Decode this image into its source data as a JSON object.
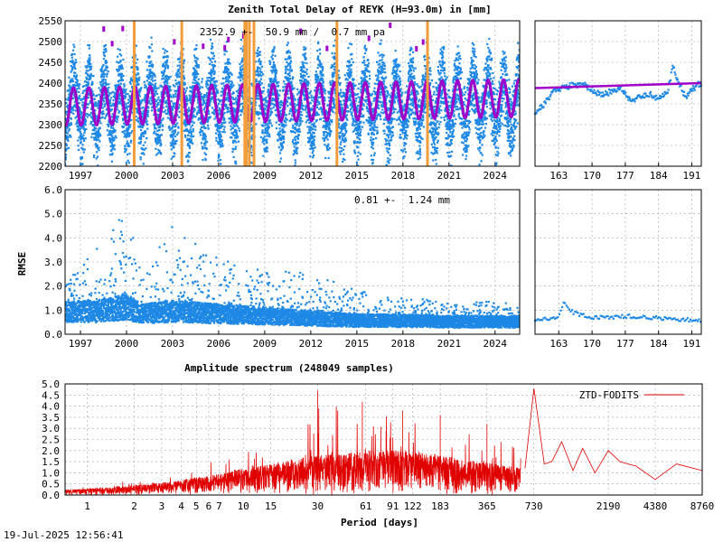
{
  "timestamp": "19-Jul-2025 12:56:41",
  "colors": {
    "obs": "#1e88e5",
    "fit": "#a000c8",
    "event": "#f39c3c",
    "spectrum": "#e00000",
    "grid": "#a0a0a0"
  },
  "chart_data": [
    {
      "id": "ztd-main",
      "type": "scatter",
      "title": "Zenith Total Delay of REYK (H=93.0m) in [mm]",
      "annotation": "2352.9 +-  50.9 mm /  0.7 mm pa",
      "ylim": [
        2200,
        2550
      ],
      "yticks": [
        2200,
        2250,
        2300,
        2350,
        2400,
        2450,
        2500,
        2550
      ],
      "xlim": [
        1996.0,
        2025.6
      ],
      "xticks": [
        1997,
        2000,
        2003,
        2006,
        2009,
        2012,
        2015,
        2018,
        2021,
        2024
      ],
      "fit": {
        "mean": 2352.9,
        "trend_mm_per_year": 0.7,
        "seasonal_amplitude": 45,
        "phase_peak": 0.55
      },
      "obs_band": {
        "summer_mean": 2410,
        "winter_mean": 2290,
        "spread": 60
      },
      "event_lines": [
        2000.5,
        2003.6,
        2007.7,
        2007.8,
        2008.0,
        2008.3,
        2013.7,
        2019.6
      ]
    },
    {
      "id": "ztd-recent",
      "type": "scatter",
      "ylim": [
        2200,
        2550
      ],
      "xlim": [
        158,
        193
      ],
      "xticks": [
        163,
        170,
        177,
        184,
        191
      ],
      "fit_level": 2388,
      "series": [
        {
          "x": [
            158,
            160,
            162,
            164,
            166,
            168,
            170,
            172,
            174,
            176,
            178,
            180,
            182,
            184,
            186,
            187,
            188,
            189,
            190,
            192,
            193
          ],
          "y": [
            2330,
            2350,
            2385,
            2390,
            2395,
            2398,
            2385,
            2370,
            2380,
            2390,
            2360,
            2365,
            2375,
            2360,
            2385,
            2440,
            2410,
            2380,
            2370,
            2395,
            2400
          ]
        }
      ]
    },
    {
      "id": "rmse-main",
      "type": "scatter",
      "ylabel": "RMSE",
      "annotation": "0.81 +-  1.24 mm",
      "ylim": [
        0.0,
        6.0
      ],
      "yticks": [
        0.0,
        1.0,
        2.0,
        3.0,
        4.0,
        5.0,
        6.0
      ],
      "xlim": [
        1996.0,
        2025.6
      ],
      "xticks": [
        1997,
        2000,
        2003,
        2006,
        2009,
        2012,
        2015,
        2018,
        2021,
        2024
      ],
      "envelope": [
        {
          "year": 1996,
          "base": 1.0,
          "peak": 2.2
        },
        {
          "year": 1998,
          "base": 1.0,
          "peak": 3.5
        },
        {
          "year": 2000,
          "base": 1.2,
          "peak": 5.5
        },
        {
          "year": 2001,
          "base": 0.9,
          "peak": 2.5
        },
        {
          "year": 2003,
          "base": 1.0,
          "peak": 4.5
        },
        {
          "year": 2006,
          "base": 0.9,
          "peak": 3.2
        },
        {
          "year": 2009,
          "base": 0.8,
          "peak": 2.6
        },
        {
          "year": 2012,
          "base": 0.7,
          "peak": 2.6
        },
        {
          "year": 2015,
          "base": 0.6,
          "peak": 1.8
        },
        {
          "year": 2018,
          "base": 0.6,
          "peak": 1.6
        },
        {
          "year": 2021,
          "base": 0.55,
          "peak": 1.3
        },
        {
          "year": 2025.6,
          "base": 0.55,
          "peak": 1.4
        }
      ]
    },
    {
      "id": "rmse-recent",
      "type": "scatter",
      "ylim": [
        0.0,
        6.0
      ],
      "xlim": [
        158,
        193
      ],
      "xticks": [
        163,
        170,
        177,
        184,
        191
      ],
      "series": [
        {
          "x": [
            158,
            161,
            163,
            164,
            166,
            168,
            170,
            174,
            178,
            182,
            186,
            190,
            193
          ],
          "y": [
            0.6,
            0.65,
            0.7,
            1.3,
            0.9,
            0.8,
            0.7,
            0.7,
            0.75,
            0.7,
            0.65,
            0.6,
            0.55
          ]
        }
      ]
    },
    {
      "id": "spectrum",
      "type": "line",
      "title": "Amplitude spectrum (248049 samples)",
      "xlabel": "Period [days]",
      "xscale": "log",
      "xlim": [
        0.72,
        8760
      ],
      "xtick_labels": [
        "1",
        "2",
        "3",
        "4",
        "5",
        "6",
        "7",
        "10",
        "15",
        "30",
        "61",
        "91",
        "122",
        "183",
        "365",
        "730",
        "2190",
        "4380",
        "8760"
      ],
      "xtick_values": [
        1,
        2,
        3,
        4,
        5,
        6,
        7,
        10,
        15,
        30,
        61,
        91,
        122,
        183,
        365,
        730,
        2190,
        4380,
        8760
      ],
      "ylim": [
        0.0,
        5.0
      ],
      "yticks": [
        "0.0",
        "0.5",
        "1.0",
        "1.5",
        "2.0",
        "2.5",
        "3.0",
        "3.5",
        "4.0",
        "4.5",
        "5.0"
      ],
      "legend": "ZTD-FODITS",
      "legend_position": "top-right",
      "envelope": [
        {
          "period": 0.72,
          "level": 0.25,
          "max": 0.35
        },
        {
          "period": 2,
          "level": 0.45,
          "max": 0.8
        },
        {
          "period": 5,
          "level": 0.8,
          "max": 1.4
        },
        {
          "period": 10,
          "level": 1.2,
          "max": 2.2
        },
        {
          "period": 20,
          "level": 1.6,
          "max": 3.3
        },
        {
          "period": 30,
          "level": 1.8,
          "max": 4.7
        },
        {
          "period": 60,
          "level": 2.0,
          "max": 4.2
        },
        {
          "period": 120,
          "level": 2.0,
          "max": 3.8
        },
        {
          "period": 250,
          "level": 1.6,
          "max": 3.3
        },
        {
          "period": 600,
          "level": 1.2,
          "max": 3.0
        }
      ],
      "peaks": [
        {
          "period": 30,
          "value": 4.7
        },
        {
          "period": 58,
          "value": 4.2
        },
        {
          "period": 105,
          "value": 3.8
        },
        {
          "period": 183,
          "value": 3.6
        },
        {
          "period": 365,
          "value": 3.2
        }
      ],
      "tail": [
        {
          "period": 640,
          "value": 1.2
        },
        {
          "period": 730,
          "value": 4.8
        },
        {
          "period": 850,
          "value": 1.4
        },
        {
          "period": 950,
          "value": 1.5
        },
        {
          "period": 1100,
          "value": 2.4
        },
        {
          "period": 1300,
          "value": 1.1
        },
        {
          "period": 1500,
          "value": 2.1
        },
        {
          "period": 1800,
          "value": 1.0
        },
        {
          "period": 2190,
          "value": 2.0
        },
        {
          "period": 2600,
          "value": 1.5
        },
        {
          "period": 3300,
          "value": 1.3
        },
        {
          "period": 4380,
          "value": 0.7
        },
        {
          "period": 6000,
          "value": 1.4
        },
        {
          "period": 8760,
          "value": 1.1
        }
      ]
    }
  ]
}
